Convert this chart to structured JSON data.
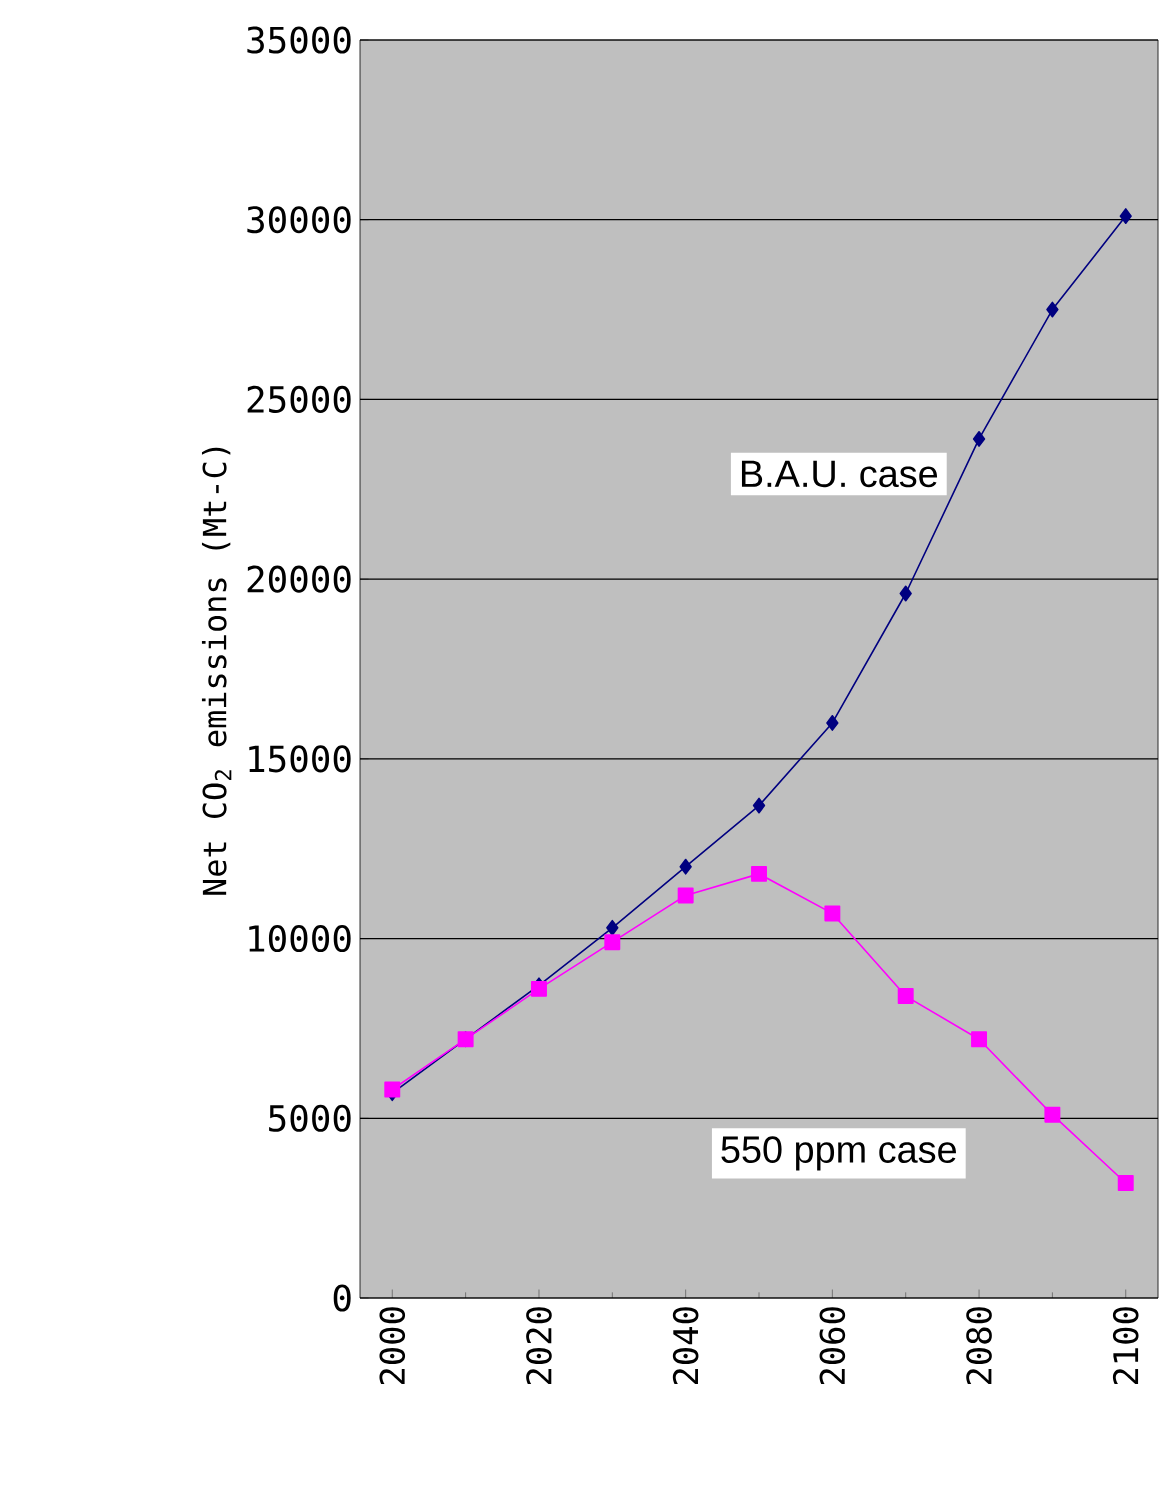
{
  "chart_data": {
    "type": "line",
    "ylabel": "Net CO$_{2}$ emissions (Mt-C)",
    "x": [
      2000,
      2010,
      2020,
      2030,
      2040,
      2050,
      2060,
      2070,
      2080,
      2090,
      2100
    ],
    "series": [
      {
        "name": "B.A.U. case",
        "color": "#000080",
        "marker": "diamond",
        "values": [
          5700,
          7200,
          8700,
          10300,
          12000,
          13700,
          16000,
          19600,
          23900,
          27500,
          30100
        ]
      },
      {
        "name": "550 ppm case",
        "color": "#ff00ff",
        "marker": "square",
        "values": [
          5800,
          7200,
          8600,
          9900,
          11200,
          11800,
          10700,
          8400,
          7200,
          5100,
          3200
        ]
      }
    ],
    "xlim": [
      1995.6,
      2104.4
    ],
    "ylim": [
      0,
      35000
    ],
    "xticks": [
      2000,
      2020,
      2040,
      2060,
      2080,
      2100
    ],
    "yticks": [
      0,
      5000,
      10000,
      15000,
      20000,
      25000,
      30000,
      35000
    ],
    "grid": "y",
    "legend": false
  }
}
